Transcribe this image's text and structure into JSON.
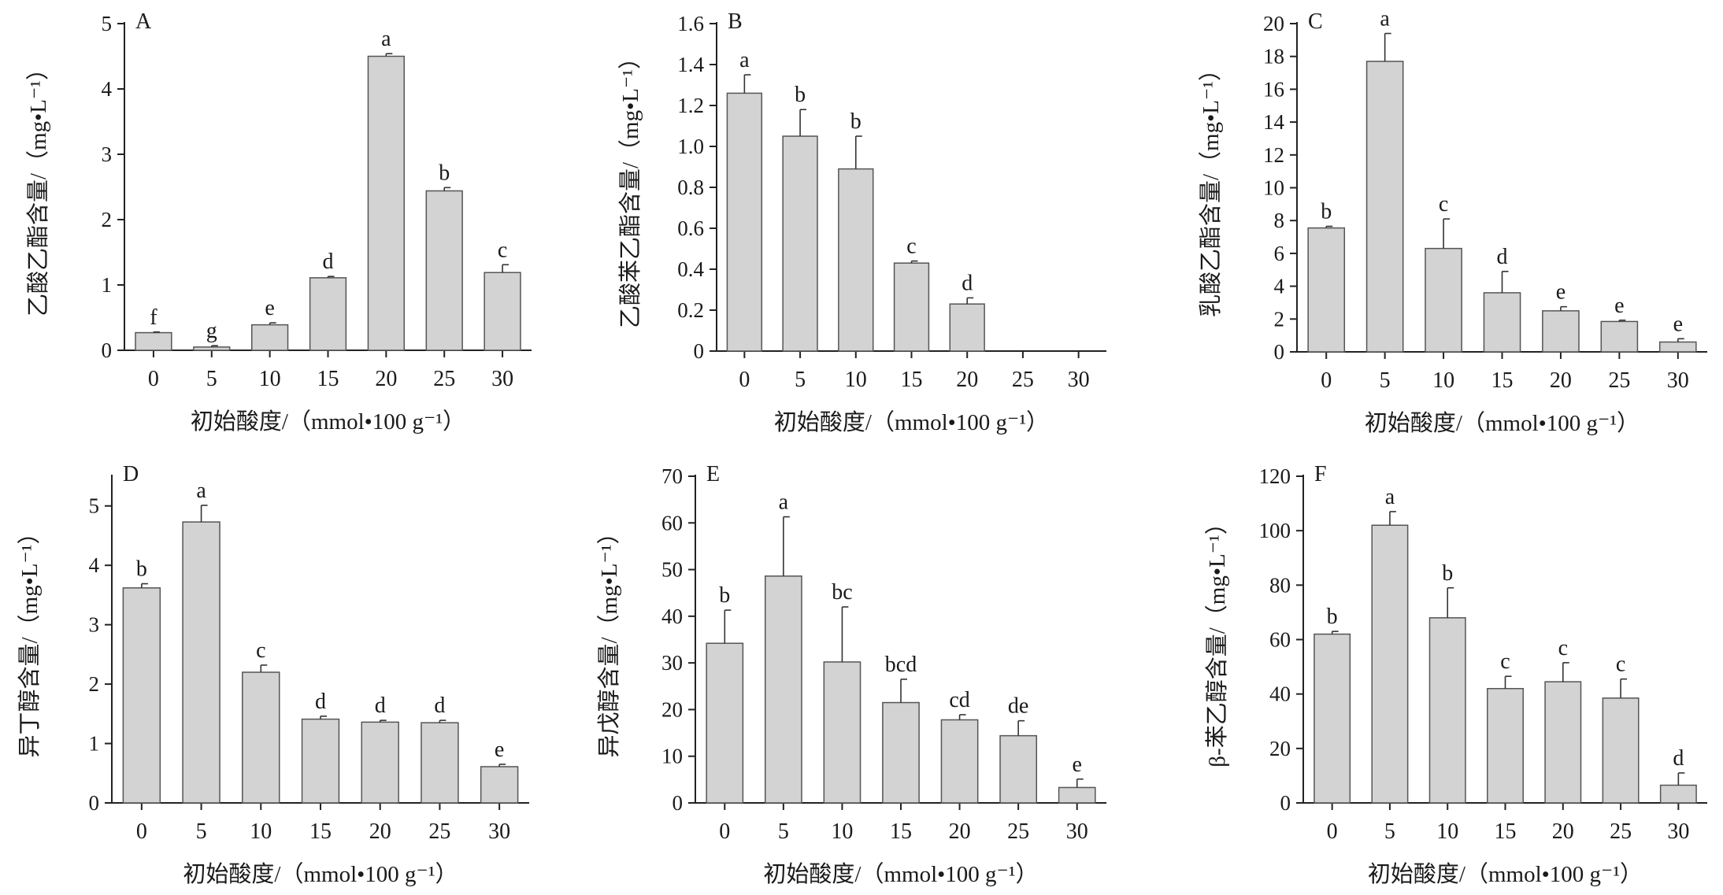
{
  "figure": {
    "bar_color": "#d3d3d3",
    "bar_stroke": "#555555",
    "axis_color": "#222222"
  },
  "chart_data": [
    {
      "panel": "A",
      "type": "bar",
      "xlabel": "初始酸度/（mmol•100 g⁻¹）",
      "ylabel": "乙酸乙酯含量/（mg•L⁻¹）",
      "categories": [
        "0",
        "5",
        "10",
        "15",
        "20",
        "25",
        "30"
      ],
      "values": [
        0.27,
        0.05,
        0.39,
        1.11,
        4.5,
        2.44,
        1.19
      ],
      "errors": [
        0.01,
        0.02,
        0.03,
        0.02,
        0.04,
        0.05,
        0.12
      ],
      "letters": [
        "f",
        "g",
        "e",
        "d",
        "a",
        "b",
        "c"
      ],
      "yticks": [
        "0",
        "1",
        "2",
        "3",
        "4",
        "5"
      ],
      "ylim": [
        0,
        5
      ]
    },
    {
      "panel": "B",
      "type": "bar",
      "xlabel": "初始酸度/（mmol•100 g⁻¹）",
      "ylabel": "乙酸苯乙酯含量/（mg•L⁻¹）",
      "categories": [
        "0",
        "5",
        "10",
        "15",
        "20",
        "25",
        "30"
      ],
      "values": [
        1.26,
        1.05,
        0.89,
        0.43,
        0.23,
        0,
        0
      ],
      "errors": [
        0.09,
        0.13,
        0.16,
        0.01,
        0.03,
        0,
        0
      ],
      "letters": [
        "a",
        "b",
        "b",
        "c",
        "d",
        "",
        ""
      ],
      "yticks": [
        "0",
        "0.2",
        "0.4",
        "0.6",
        "0.8",
        "1.0",
        "1.2",
        "1.4",
        "1.6"
      ],
      "ylim": [
        0,
        1.6
      ]
    },
    {
      "panel": "C",
      "type": "bar",
      "xlabel": "初始酸度/（mmol•100 g⁻¹）",
      "ylabel": "乳酸乙酯含量/（mg•L⁻¹）",
      "categories": [
        "0",
        "5",
        "10",
        "15",
        "20",
        "25",
        "30"
      ],
      "values": [
        7.55,
        17.7,
        6.3,
        3.6,
        2.5,
        1.85,
        0.6
      ],
      "errors": [
        0.1,
        1.7,
        1.8,
        1.3,
        0.25,
        0.08,
        0.2
      ],
      "letters": [
        "b",
        "a",
        "c",
        "d",
        "e",
        "e",
        "e"
      ],
      "yticks": [
        "0",
        "2",
        "4",
        "6",
        "8",
        "10",
        "12",
        "14",
        "16",
        "18",
        "20"
      ],
      "ylim": [
        0,
        20
      ]
    },
    {
      "panel": "D",
      "type": "bar",
      "xlabel": "初始酸度/（mmol•100 g⁻¹）",
      "ylabel": "异丁醇含量/（mg•L⁻¹）",
      "categories": [
        "0",
        "5",
        "10",
        "15",
        "20",
        "25",
        "30"
      ],
      "values": [
        3.62,
        4.73,
        2.2,
        1.41,
        1.36,
        1.35,
        0.61
      ],
      "errors": [
        0.07,
        0.28,
        0.12,
        0.05,
        0.03,
        0.04,
        0.04
      ],
      "letters": [
        "b",
        "a",
        "c",
        "d",
        "d",
        "d",
        "e"
      ],
      "yticks": [
        "0",
        "1",
        "2",
        "3",
        "4",
        "5"
      ],
      "ylim": [
        0,
        5.5
      ]
    },
    {
      "panel": "E",
      "type": "bar",
      "xlabel": "初始酸度/（mmol•100 g⁻¹）",
      "ylabel": "异戊醇含量/（mg•L⁻¹）",
      "categories": [
        "0",
        "5",
        "10",
        "15",
        "20",
        "25",
        "30"
      ],
      "values": [
        34.2,
        48.6,
        30.2,
        21.5,
        17.8,
        14.4,
        3.3
      ],
      "errors": [
        7.1,
        12.7,
        11.8,
        5.0,
        1.1,
        3.2,
        1.8
      ],
      "letters": [
        "b",
        "a",
        "bc",
        "bcd",
        "cd",
        "de",
        "e"
      ],
      "yticks": [
        "0",
        "10",
        "20",
        "30",
        "40",
        "50",
        "60",
        "70"
      ],
      "ylim": [
        0,
        70
      ]
    },
    {
      "panel": "F",
      "type": "bar",
      "xlabel": "初始酸度/（mmol•100 g⁻¹）",
      "ylabel": "β-苯乙醇含量/（mg•L⁻¹）",
      "categories": [
        "0",
        "5",
        "10",
        "15",
        "20",
        "25",
        "30"
      ],
      "values": [
        62,
        102,
        68,
        42,
        44.5,
        38.5,
        6.5
      ],
      "errors": [
        1,
        5,
        11,
        4.5,
        7,
        7,
        4.5
      ],
      "letters": [
        "b",
        "a",
        "b",
        "c",
        "c",
        "c",
        "d"
      ],
      "yticks": [
        "0",
        "20",
        "40",
        "60",
        "80",
        "100",
        "120"
      ],
      "ylim": [
        0,
        120
      ]
    }
  ]
}
